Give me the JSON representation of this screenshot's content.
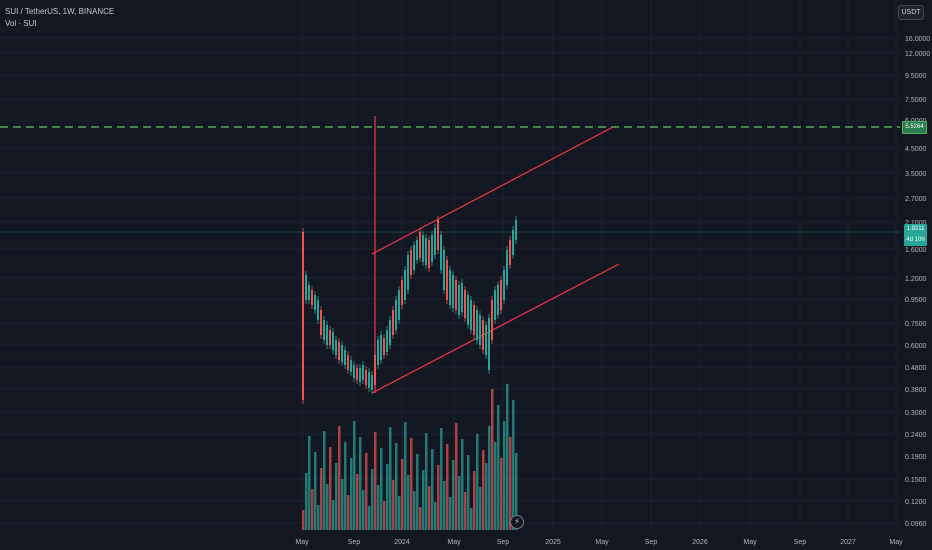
{
  "legend": {
    "symbol": "SUI / TetherUS, 1W, BINANCE",
    "volume": "Vol · SUI"
  },
  "currency": "USDT",
  "price_axis": {
    "ticks": [
      "16.0000",
      "12.0000",
      "9.5000",
      "7.5000",
      "6.0000",
      "4.5000",
      "3.5000",
      "2.7000",
      "2.1000",
      "1.6000",
      "1.2000",
      "0.9500",
      "0.7500",
      "0.6000",
      "0.4800",
      "0.3800",
      "0.3000",
      "0.2400",
      "0.1900",
      "0.1500",
      "0.1200",
      "0.0960"
    ]
  },
  "time_axis": {
    "ticks": [
      "May",
      "Sep",
      "2024",
      "May",
      "Sep",
      "2025",
      "May",
      "Sep",
      "2026",
      "May",
      "Sep",
      "2027",
      "May"
    ]
  },
  "price_tags": {
    "dashed_level": "5.5264",
    "current_price": "1.9211",
    "countdown": "4d 10h"
  },
  "colors": {
    "up": "#26a69a",
    "down": "#ef5350",
    "trendline": "#f23645",
    "dashed_level": "#4caf50",
    "background": "#131722",
    "grid": "#1e222d"
  },
  "icons": {
    "replay": "lightning-icon"
  }
}
